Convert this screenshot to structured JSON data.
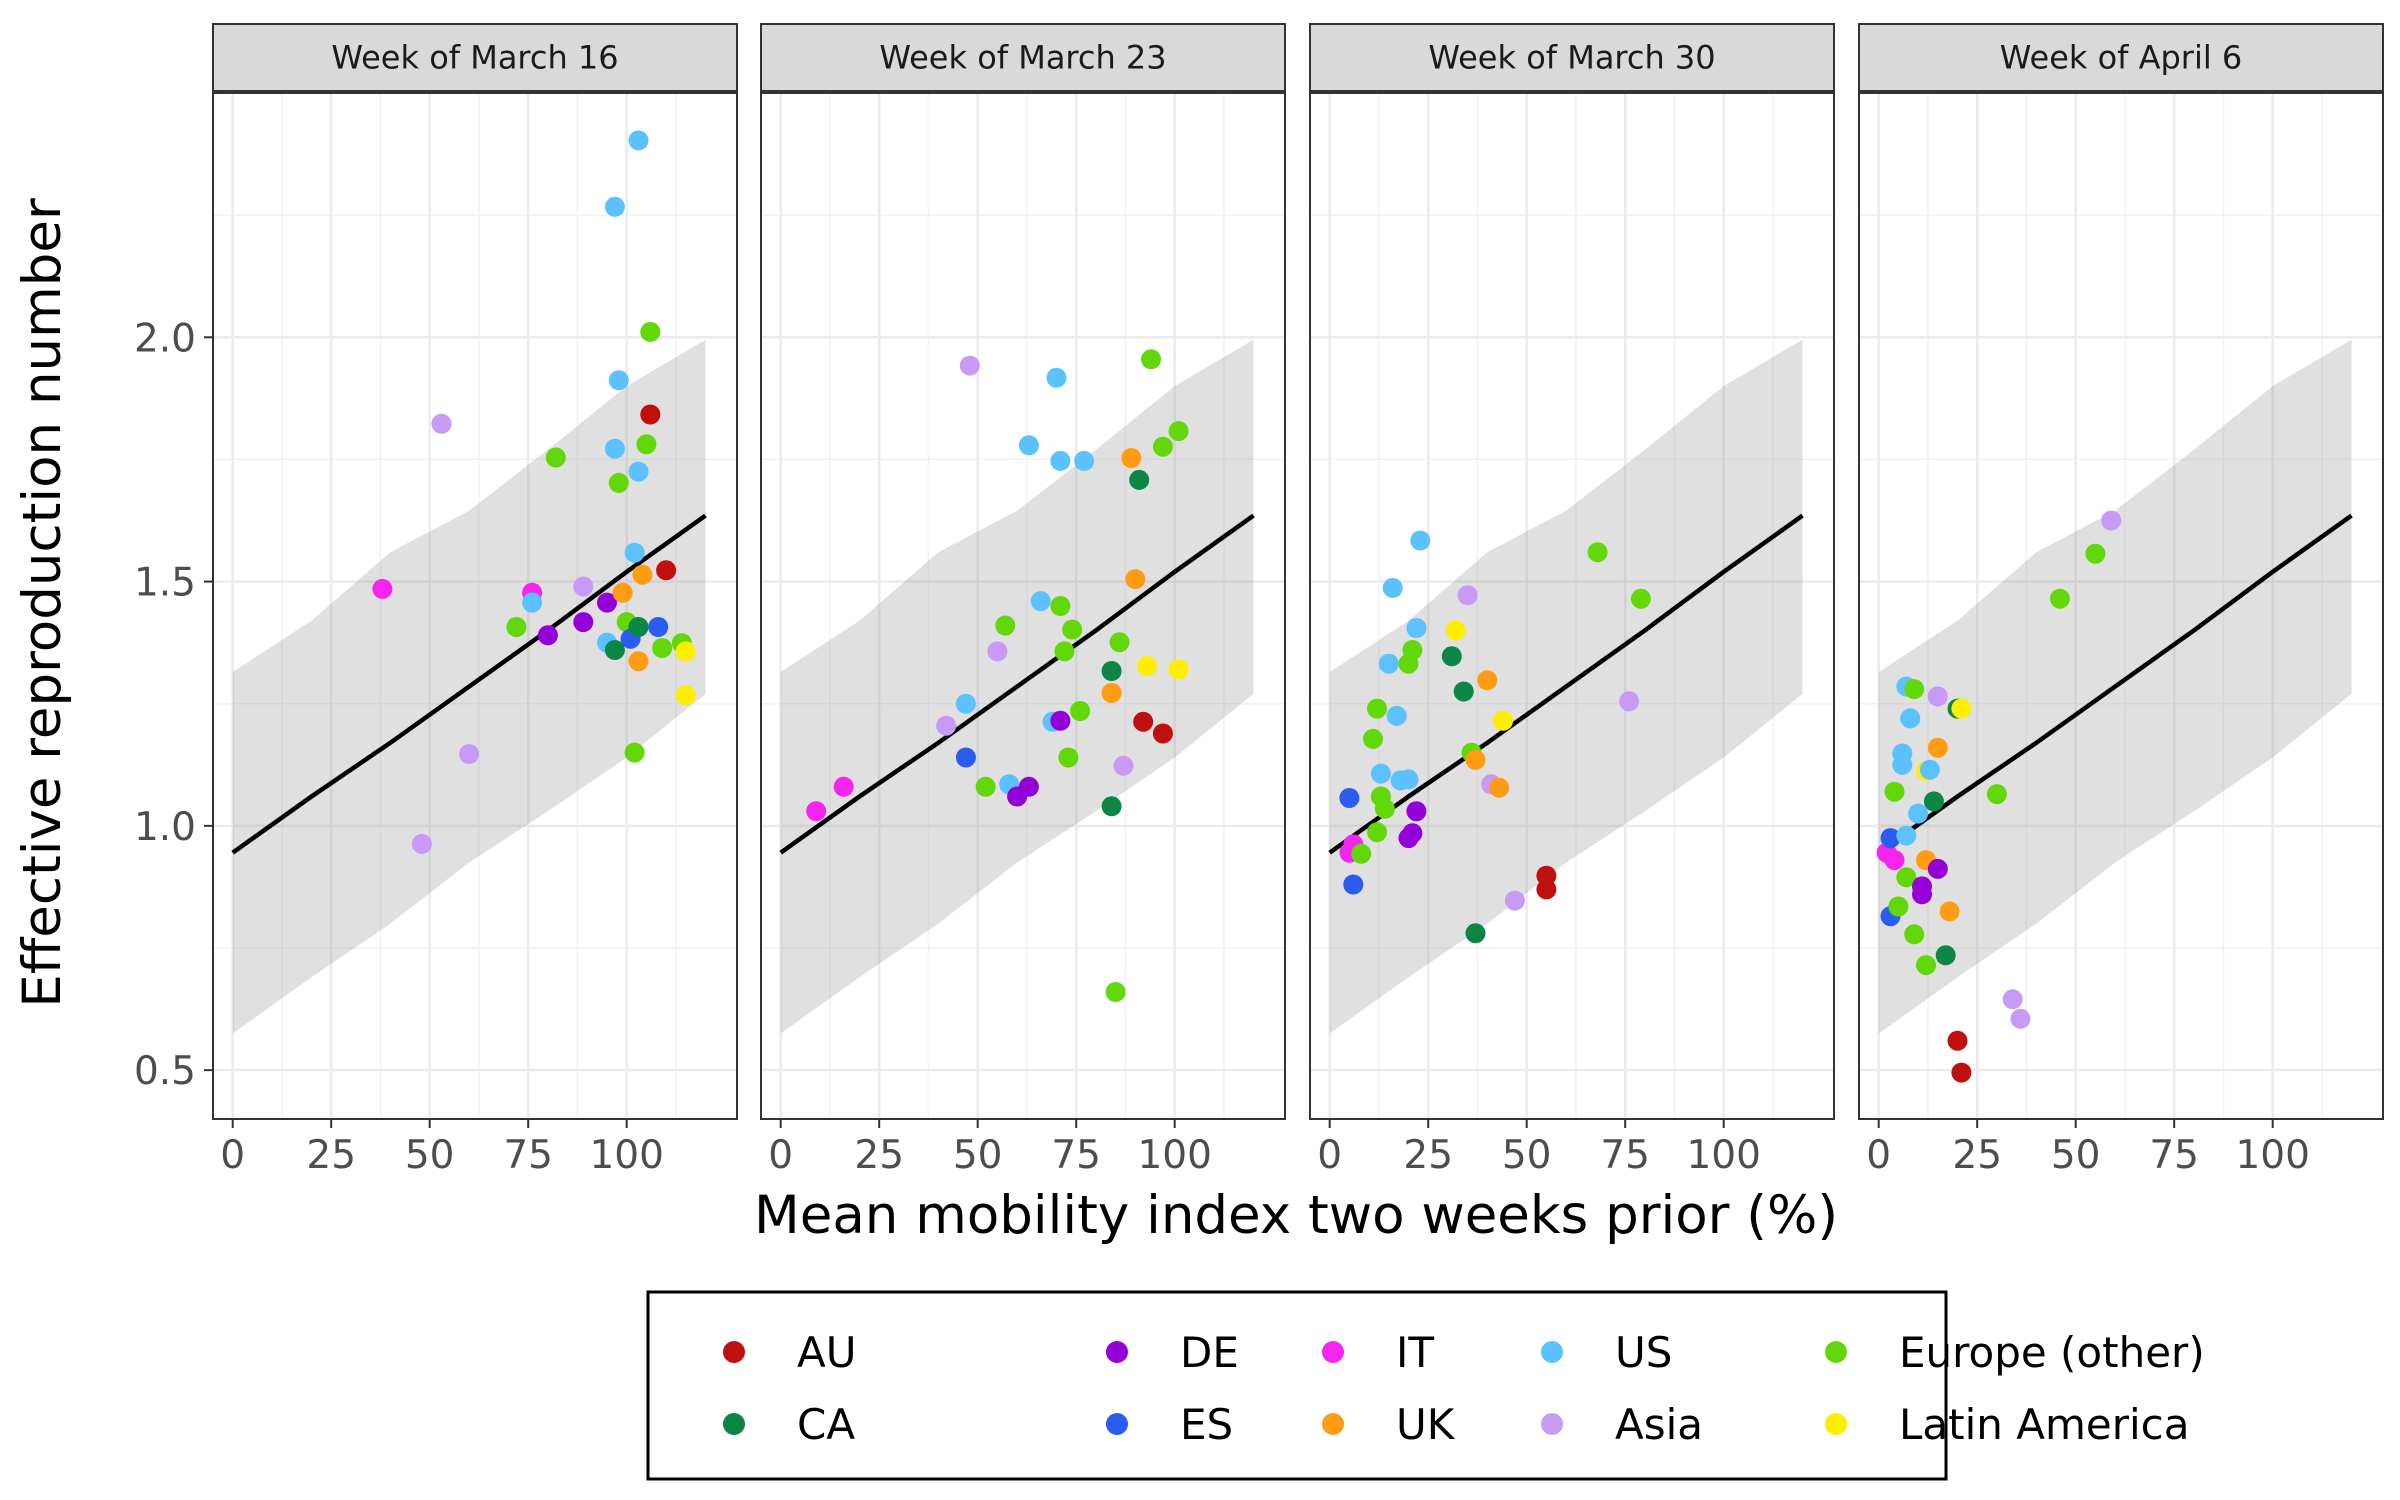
{
  "chart_data": {
    "type": "scatter",
    "xlabel": "Mean mobility index two weeks prior (%)",
    "ylabel": "Effective reproduction number",
    "xlim": [
      -5,
      128
    ],
    "ylim": [
      0.4,
      2.5
    ],
    "x_ticks": [
      0,
      25,
      50,
      75,
      100
    ],
    "y_ticks": [
      0.5,
      1.0,
      1.5,
      2.0
    ],
    "x_tick_labels": [
      "0",
      "25",
      "50",
      "75",
      "100"
    ],
    "y_tick_labels": [
      "0.5",
      "1.0",
      "1.5",
      "2.0"
    ],
    "grid": true,
    "legend_position": "bottom",
    "colors": {
      "AU": "#c00f0f",
      "CA": "#0b8645",
      "DE": "#9400d8",
      "ES": "#2b5cf0",
      "IT": "#f525f0",
      "UK": "#ff9c13",
      "US": "#5cc2ff",
      "Asia": "#c89af5",
      "Europe (other)": "#62d80b",
      "Latin America": "#ffee00"
    },
    "legend": [
      {
        "name": "AU",
        "label": "AU"
      },
      {
        "name": "CA",
        "label": "CA"
      },
      {
        "name": "DE",
        "label": "DE"
      },
      {
        "name": "ES",
        "label": "ES"
      },
      {
        "name": "IT",
        "label": "IT"
      },
      {
        "name": "UK",
        "label": "UK"
      },
      {
        "name": "US",
        "label": "US"
      },
      {
        "name": "Asia",
        "label": "Asia"
      },
      {
        "name": "Europe (other)",
        "label": "Europe (other)"
      },
      {
        "name": "Latin America",
        "label": "Latin America"
      }
    ],
    "fit": {
      "x": [
        0,
        20,
        40,
        60,
        80,
        100,
        120
      ],
      "y": [
        0.945,
        1.06,
        1.17,
        1.285,
        1.4,
        1.52,
        1.635
      ],
      "lower": [
        0.575,
        0.69,
        0.8,
        0.925,
        1.03,
        1.14,
        1.27
      ],
      "upper": [
        1.315,
        1.42,
        1.56,
        1.645,
        1.77,
        1.9,
        1.995
      ]
    },
    "panels": [
      {
        "title": "Week of March 16",
        "points": [
          {
            "x": 38,
            "y": 1.485,
            "g": "IT"
          },
          {
            "x": 48,
            "y": 0.963,
            "g": "Asia"
          },
          {
            "x": 53,
            "y": 1.823,
            "g": "Asia"
          },
          {
            "x": 60,
            "y": 1.147,
            "g": "Asia"
          },
          {
            "x": 72,
            "y": 1.407,
            "g": "Europe (other)"
          },
          {
            "x": 76,
            "y": 1.477,
            "g": "IT"
          },
          {
            "x": 76,
            "y": 1.457,
            "g": "US"
          },
          {
            "x": 80,
            "y": 1.39,
            "g": "DE"
          },
          {
            "x": 82,
            "y": 1.754,
            "g": "Europe (other)"
          },
          {
            "x": 89,
            "y": 1.417,
            "g": "DE"
          },
          {
            "x": 89,
            "y": 1.49,
            "g": "Asia"
          },
          {
            "x": 95,
            "y": 1.457,
            "g": "DE"
          },
          {
            "x": 95,
            "y": 1.375,
            "g": "US"
          },
          {
            "x": 97,
            "y": 1.772,
            "g": "US"
          },
          {
            "x": 97,
            "y": 2.267,
            "g": "US"
          },
          {
            "x": 98,
            "y": 1.912,
            "g": "US"
          },
          {
            "x": 98,
            "y": 1.702,
            "g": "Europe (other)"
          },
          {
            "x": 97,
            "y": 1.36,
            "g": "CA"
          },
          {
            "x": 99,
            "y": 1.477,
            "g": "UK"
          },
          {
            "x": 100,
            "y": 1.417,
            "g": "Europe (other)"
          },
          {
            "x": 101,
            "y": 1.383,
            "g": "ES"
          },
          {
            "x": 102,
            "y": 1.559,
            "g": "US"
          },
          {
            "x": 102,
            "y": 1.15,
            "g": "Europe (other)"
          },
          {
            "x": 103,
            "y": 2.403,
            "g": "US"
          },
          {
            "x": 103,
            "y": 1.725,
            "g": "US"
          },
          {
            "x": 103,
            "y": 1.337,
            "g": "UK"
          },
          {
            "x": 103,
            "y": 1.407,
            "g": "CA"
          },
          {
            "x": 104,
            "y": 1.514,
            "g": "UK"
          },
          {
            "x": 105,
            "y": 1.781,
            "g": "Europe (other)"
          },
          {
            "x": 106,
            "y": 2.011,
            "g": "Europe (other)"
          },
          {
            "x": 106,
            "y": 1.842,
            "g": "AU"
          },
          {
            "x": 108,
            "y": 1.407,
            "g": "ES"
          },
          {
            "x": 109,
            "y": 1.364,
            "g": "Europe (other)"
          },
          {
            "x": 110,
            "y": 1.523,
            "g": "AU"
          },
          {
            "x": 114,
            "y": 1.374,
            "g": "Europe (other)"
          },
          {
            "x": 115,
            "y": 1.357,
            "g": "Latin America"
          },
          {
            "x": 115,
            "y": 1.267,
            "g": "Latin America"
          }
        ]
      },
      {
        "title": "Week of March 23",
        "points": [
          {
            "x": 9,
            "y": 1.03,
            "g": "IT"
          },
          {
            "x": 16,
            "y": 1.08,
            "g": "IT"
          },
          {
            "x": 42,
            "y": 1.205,
            "g": "Asia"
          },
          {
            "x": 47,
            "y": 1.25,
            "g": "US"
          },
          {
            "x": 47,
            "y": 1.14,
            "g": "ES"
          },
          {
            "x": 48,
            "y": 1.942,
            "g": "Asia"
          },
          {
            "x": 52,
            "y": 1.08,
            "g": "Europe (other)"
          },
          {
            "x": 55,
            "y": 1.357,
            "g": "Asia"
          },
          {
            "x": 57,
            "y": 1.41,
            "g": "Europe (other)"
          },
          {
            "x": 58,
            "y": 1.085,
            "g": "US"
          },
          {
            "x": 60,
            "y": 1.06,
            "g": "DE"
          },
          {
            "x": 63,
            "y": 1.08,
            "g": "DE"
          },
          {
            "x": 63,
            "y": 1.779,
            "g": "US"
          },
          {
            "x": 66,
            "y": 1.46,
            "g": "US"
          },
          {
            "x": 69,
            "y": 1.213,
            "g": "US"
          },
          {
            "x": 70,
            "y": 1.917,
            "g": "US"
          },
          {
            "x": 71,
            "y": 1.215,
            "g": "DE"
          },
          {
            "x": 71,
            "y": 1.747,
            "g": "US"
          },
          {
            "x": 71,
            "y": 1.45,
            "g": "Europe (other)"
          },
          {
            "x": 72,
            "y": 1.357,
            "g": "Europe (other)"
          },
          {
            "x": 73,
            "y": 1.14,
            "g": "Europe (other)"
          },
          {
            "x": 74,
            "y": 1.402,
            "g": "Europe (other)"
          },
          {
            "x": 76,
            "y": 1.235,
            "g": "Europe (other)"
          },
          {
            "x": 77,
            "y": 1.747,
            "g": "US"
          },
          {
            "x": 84,
            "y": 1.04,
            "g": "CA"
          },
          {
            "x": 84,
            "y": 1.317,
            "g": "CA"
          },
          {
            "x": 84,
            "y": 1.272,
            "g": "UK"
          },
          {
            "x": 85,
            "y": 0.66,
            "g": "Europe (other)"
          },
          {
            "x": 86,
            "y": 1.376,
            "g": "Europe (other)"
          },
          {
            "x": 87,
            "y": 1.123,
            "g": "Asia"
          },
          {
            "x": 89,
            "y": 1.753,
            "g": "UK"
          },
          {
            "x": 90,
            "y": 1.505,
            "g": "UK"
          },
          {
            "x": 91,
            "y": 1.708,
            "g": "CA"
          },
          {
            "x": 92,
            "y": 1.213,
            "g": "AU"
          },
          {
            "x": 93,
            "y": 1.327,
            "g": "Latin America"
          },
          {
            "x": 94,
            "y": 1.955,
            "g": "Europe (other)"
          },
          {
            "x": 97,
            "y": 1.189,
            "g": "AU"
          },
          {
            "x": 97,
            "y": 1.776,
            "g": "Europe (other)"
          },
          {
            "x": 101,
            "y": 1.32,
            "g": "Latin America"
          },
          {
            "x": 101,
            "y": 1.808,
            "g": "Europe (other)"
          }
        ]
      },
      {
        "title": "Week of March 30",
        "points": [
          {
            "x": 5,
            "y": 0.945,
            "g": "IT"
          },
          {
            "x": 5,
            "y": 1.057,
            "g": "ES"
          },
          {
            "x": 6,
            "y": 0.88,
            "g": "ES"
          },
          {
            "x": 6,
            "y": 0.962,
            "g": "IT"
          },
          {
            "x": 8,
            "y": 0.943,
            "g": "Europe (other)"
          },
          {
            "x": 11,
            "y": 1.178,
            "g": "Europe (other)"
          },
          {
            "x": 12,
            "y": 1.24,
            "g": "Europe (other)"
          },
          {
            "x": 12,
            "y": 0.987,
            "g": "Europe (other)"
          },
          {
            "x": 13,
            "y": 1.06,
            "g": "Europe (other)"
          },
          {
            "x": 13,
            "y": 1.107,
            "g": "US"
          },
          {
            "x": 14,
            "y": 1.035,
            "g": "Europe (other)"
          },
          {
            "x": 15,
            "y": 1.332,
            "g": "US"
          },
          {
            "x": 16,
            "y": 1.487,
            "g": "US"
          },
          {
            "x": 17,
            "y": 1.225,
            "g": "US"
          },
          {
            "x": 18,
            "y": 1.093,
            "g": "US"
          },
          {
            "x": 20,
            "y": 1.332,
            "g": "Europe (other)"
          },
          {
            "x": 20,
            "y": 0.975,
            "g": "DE"
          },
          {
            "x": 20,
            "y": 1.095,
            "g": "US"
          },
          {
            "x": 21,
            "y": 0.985,
            "g": "DE"
          },
          {
            "x": 21,
            "y": 1.36,
            "g": "Europe (other)"
          },
          {
            "x": 22,
            "y": 1.03,
            "g": "DE"
          },
          {
            "x": 22,
            "y": 1.405,
            "g": "US"
          },
          {
            "x": 23,
            "y": 1.584,
            "g": "US"
          },
          {
            "x": 31,
            "y": 1.347,
            "g": "CA"
          },
          {
            "x": 32,
            "y": 1.4,
            "g": "Latin America"
          },
          {
            "x": 34,
            "y": 1.275,
            "g": "CA"
          },
          {
            "x": 35,
            "y": 1.472,
            "g": "Asia"
          },
          {
            "x": 36,
            "y": 1.15,
            "g": "Europe (other)"
          },
          {
            "x": 37,
            "y": 1.135,
            "g": "UK"
          },
          {
            "x": 37,
            "y": 0.78,
            "g": "CA"
          },
          {
            "x": 40,
            "y": 1.298,
            "g": "UK"
          },
          {
            "x": 41,
            "y": 1.085,
            "g": "Asia"
          },
          {
            "x": 43,
            "y": 1.078,
            "g": "UK"
          },
          {
            "x": 44,
            "y": 1.215,
            "g": "Latin America"
          },
          {
            "x": 47,
            "y": 0.847,
            "g": "Asia"
          },
          {
            "x": 55,
            "y": 0.898,
            "g": "AU"
          },
          {
            "x": 55,
            "y": 0.87,
            "g": "AU"
          },
          {
            "x": 68,
            "y": 1.56,
            "g": "Europe (other)"
          },
          {
            "x": 76,
            "y": 1.255,
            "g": "Asia"
          },
          {
            "x": 79,
            "y": 1.465,
            "g": "Europe (other)"
          }
        ]
      },
      {
        "title": "Week of April 6",
        "points": [
          {
            "x": 2,
            "y": 0.945,
            "g": "IT"
          },
          {
            "x": 3,
            "y": 0.975,
            "g": "ES"
          },
          {
            "x": 3,
            "y": 0.815,
            "g": "ES"
          },
          {
            "x": 4,
            "y": 1.07,
            "g": "Europe (other)"
          },
          {
            "x": 4,
            "y": 0.93,
            "g": "IT"
          },
          {
            "x": 5,
            "y": 0.835,
            "g": "Europe (other)"
          },
          {
            "x": 6,
            "y": 1.148,
            "g": "US"
          },
          {
            "x": 6,
            "y": 1.125,
            "g": "US"
          },
          {
            "x": 7,
            "y": 1.285,
            "g": "US"
          },
          {
            "x": 7,
            "y": 0.98,
            "g": "US"
          },
          {
            "x": 7,
            "y": 0.895,
            "g": "Europe (other)"
          },
          {
            "x": 8,
            "y": 1.22,
            "g": "US"
          },
          {
            "x": 9,
            "y": 1.28,
            "g": "Europe (other)"
          },
          {
            "x": 9,
            "y": 0.778,
            "g": "Europe (other)"
          },
          {
            "x": 10,
            "y": 1.025,
            "g": "US"
          },
          {
            "x": 11,
            "y": 0.876,
            "g": "DE"
          },
          {
            "x": 11,
            "y": 0.86,
            "g": "DE"
          },
          {
            "x": 12,
            "y": 0.715,
            "g": "Europe (other)"
          },
          {
            "x": 12,
            "y": 1.112,
            "g": "Latin America"
          },
          {
            "x": 12,
            "y": 0.93,
            "g": "UK"
          },
          {
            "x": 13,
            "y": 1.115,
            "g": "US"
          },
          {
            "x": 14,
            "y": 1.05,
            "g": "CA"
          },
          {
            "x": 15,
            "y": 0.912,
            "g": "DE"
          },
          {
            "x": 15,
            "y": 1.16,
            "g": "UK"
          },
          {
            "x": 15,
            "y": 1.265,
            "g": "Asia"
          },
          {
            "x": 17,
            "y": 0.735,
            "g": "CA"
          },
          {
            "x": 18,
            "y": 0.825,
            "g": "UK"
          },
          {
            "x": 20,
            "y": 1.24,
            "g": "CA"
          },
          {
            "x": 20,
            "y": 0.56,
            "g": "AU"
          },
          {
            "x": 21,
            "y": 1.24,
            "g": "Latin America"
          },
          {
            "x": 21,
            "y": 0.495,
            "g": "AU"
          },
          {
            "x": 30,
            "y": 1.065,
            "g": "Europe (other)"
          },
          {
            "x": 34,
            "y": 0.645,
            "g": "Asia"
          },
          {
            "x": 36,
            "y": 0.605,
            "g": "Asia"
          },
          {
            "x": 46,
            "y": 1.465,
            "g": "Europe (other)"
          },
          {
            "x": 55,
            "y": 1.557,
            "g": "Europe (other)"
          },
          {
            "x": 59,
            "y": 1.625,
            "g": "Asia"
          }
        ]
      }
    ]
  }
}
